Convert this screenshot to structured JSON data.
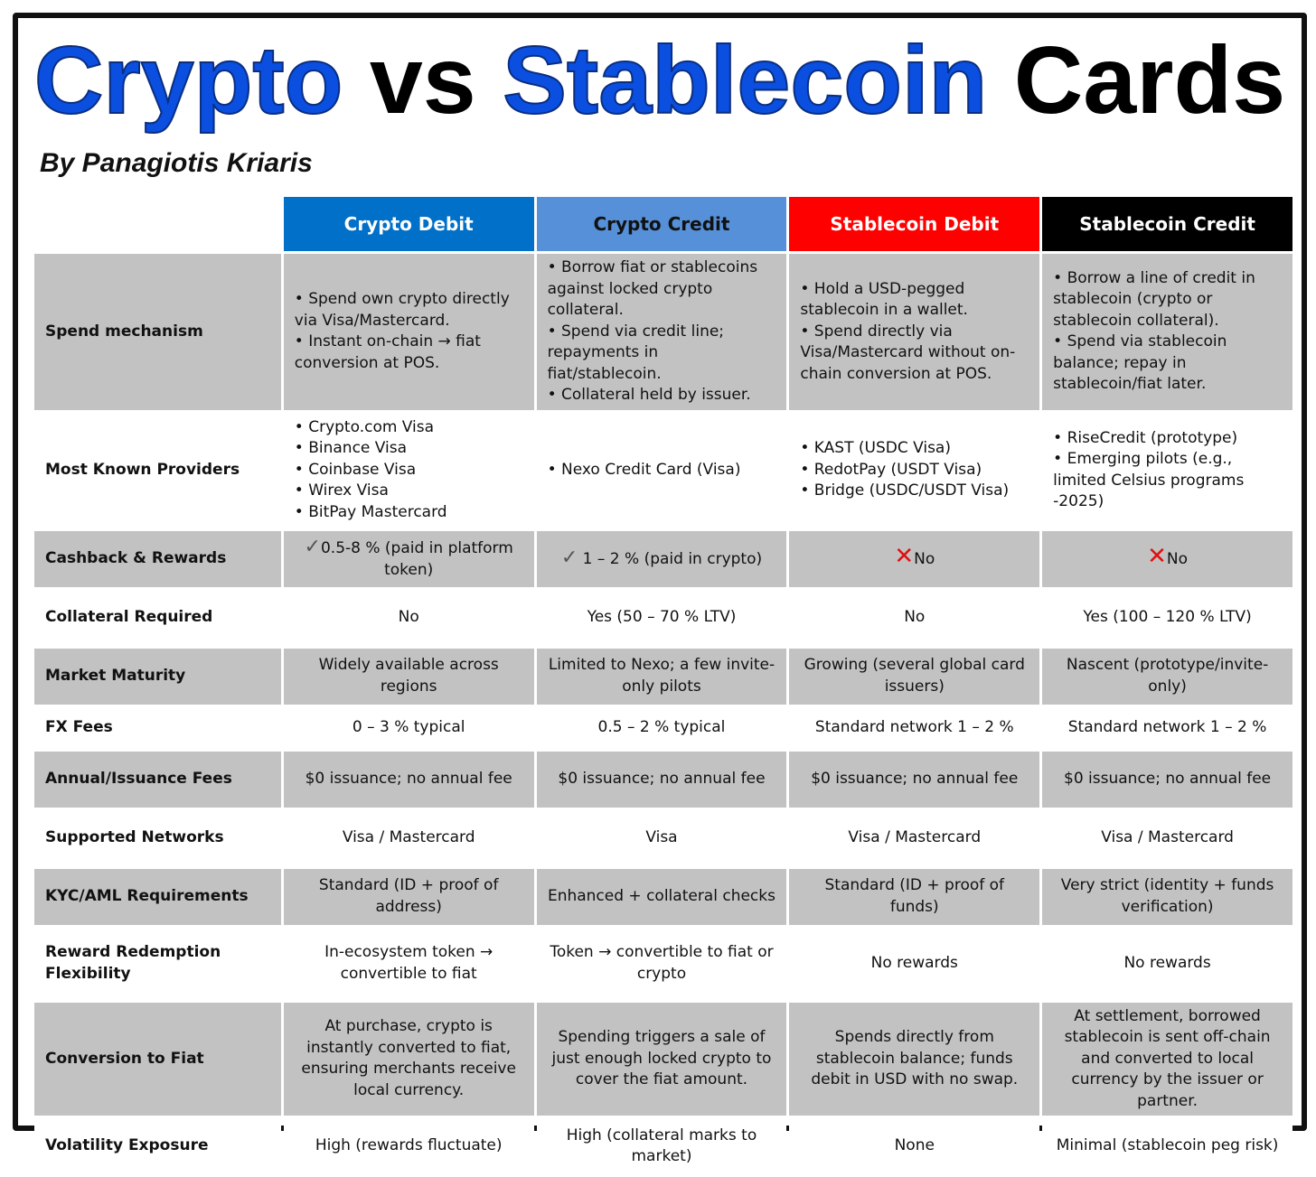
{
  "title": {
    "word1": "Crypto",
    "word2": "vs",
    "word3": "Stablecoin",
    "word4": "Cards"
  },
  "byline": "By Panagiotis Kriaris",
  "colors": {
    "title_blue": "#0a4fe0",
    "crypto_debit": "#0070c8",
    "crypto_credit": "#5590d8",
    "stablecoin_debit": "#ff0000",
    "stablecoin_credit": "#000000",
    "row_gray": "#c2c2c2",
    "cross_red": "#e01010"
  },
  "columns": [
    "Crypto Debit",
    "Crypto Credit",
    "Stablecoin Debit",
    "Stablecoin Credit"
  ],
  "rows": [
    {
      "label": "Spend mechanism",
      "cells": [
        [
          "• Spend own crypto directly via Visa/Mastercard.",
          "• Instant on-chain → fiat conversion at POS."
        ],
        [
          "• Borrow fiat or stablecoins against locked crypto collateral.",
          "• Spend via credit line; repayments in fiat/stablecoin.",
          "• Collateral held by issuer."
        ],
        [
          "• Hold a USD-pegged stablecoin in a wallet.",
          "• Spend directly via Visa/Mastercard without on-chain conversion at POS."
        ],
        [
          "• Borrow a line of credit in stablecoin (crypto or stablecoin collateral).",
          "• Spend via stablecoin balance; repay in stablecoin/fiat later."
        ]
      ]
    },
    {
      "label": "Most Known Providers",
      "cells": [
        [
          "• Crypto.com Visa",
          "• Binance Visa",
          "• Coinbase Visa",
          "• Wirex Visa",
          "• BitPay Mastercard"
        ],
        [
          "• Nexo Credit Card (Visa)"
        ],
        [
          "• KAST (USDC Visa)",
          "• RedotPay (USDT Visa)",
          "• Bridge (USDC/USDT Visa)"
        ],
        [
          "• RiseCredit (prototype)",
          "• Emerging pilots (e.g., limited Celsius programs -2025)"
        ]
      ]
    },
    {
      "label": "Cashback & Rewards",
      "cells": [
        {
          "icon": "check-icon",
          "glyph": "✓",
          "text": "0.5-8 % (paid in platform token)"
        },
        {
          "icon": "check-icon",
          "glyph": "✓",
          "text": " 1 – 2 % (paid in crypto)"
        },
        {
          "icon": "cross-icon",
          "glyph": "✕",
          "text": "No"
        },
        {
          "icon": "cross-icon",
          "glyph": "✕",
          "text": "No"
        }
      ]
    },
    {
      "label": "Collateral Required",
      "cells": [
        "No",
        "Yes (50 – 70 % LTV)",
        "No",
        "Yes (100 – 120 % LTV)"
      ]
    },
    {
      "label": "Market Maturity",
      "cells": [
        "Widely available across regions",
        "Limited to Nexo; a few invite-only pilots",
        "Growing (several global card issuers)",
        "Nascent (prototype/invite-only)"
      ]
    },
    {
      "label": "FX Fees",
      "cells": [
        "0 – 3 % typical",
        "0.5 – 2 % typical",
        "Standard network 1 – 2 %",
        "Standard network 1 – 2 %"
      ]
    },
    {
      "label": "Annual/Issuance Fees",
      "cells": [
        "$0 issuance; no annual fee",
        "$0 issuance; no annual fee",
        "$0 issuance; no annual fee",
        "$0 issuance; no annual fee"
      ]
    },
    {
      "label": "Supported Networks",
      "cells": [
        "Visa / Mastercard",
        "Visa",
        "Visa / Mastercard",
        "Visa / Mastercard"
      ]
    },
    {
      "label": "KYC/AML Requirements",
      "cells": [
        "Standard (ID + proof of address)",
        "Enhanced + collateral checks",
        "Standard (ID + proof of funds)",
        "Very strict (identity + funds verification)"
      ]
    },
    {
      "label": "Reward Redemption Flexibility",
      "cells": [
        "In-ecosystem token → convertible to fiat",
        "Token → convertible to fiat or crypto",
        "No rewards",
        "No rewards"
      ]
    },
    {
      "label": "Conversion to Fiat",
      "cells": [
        "At purchase, crypto is instantly converted to fiat, ensuring merchants receive local currency.",
        "Spending triggers a sale of just enough locked crypto to cover the fiat amount.",
        "Spends directly from stablecoin balance; funds debit in USD with no swap.",
        "At settlement, borrowed stablecoin is sent off-chain and converted to local currency by the issuer or partner."
      ]
    },
    {
      "label": "Volatility Exposure",
      "cells": [
        "High (rewards fluctuate)",
        "High (collateral marks to market)",
        "None",
        "Minimal (stablecoin peg risk)"
      ]
    }
  ]
}
